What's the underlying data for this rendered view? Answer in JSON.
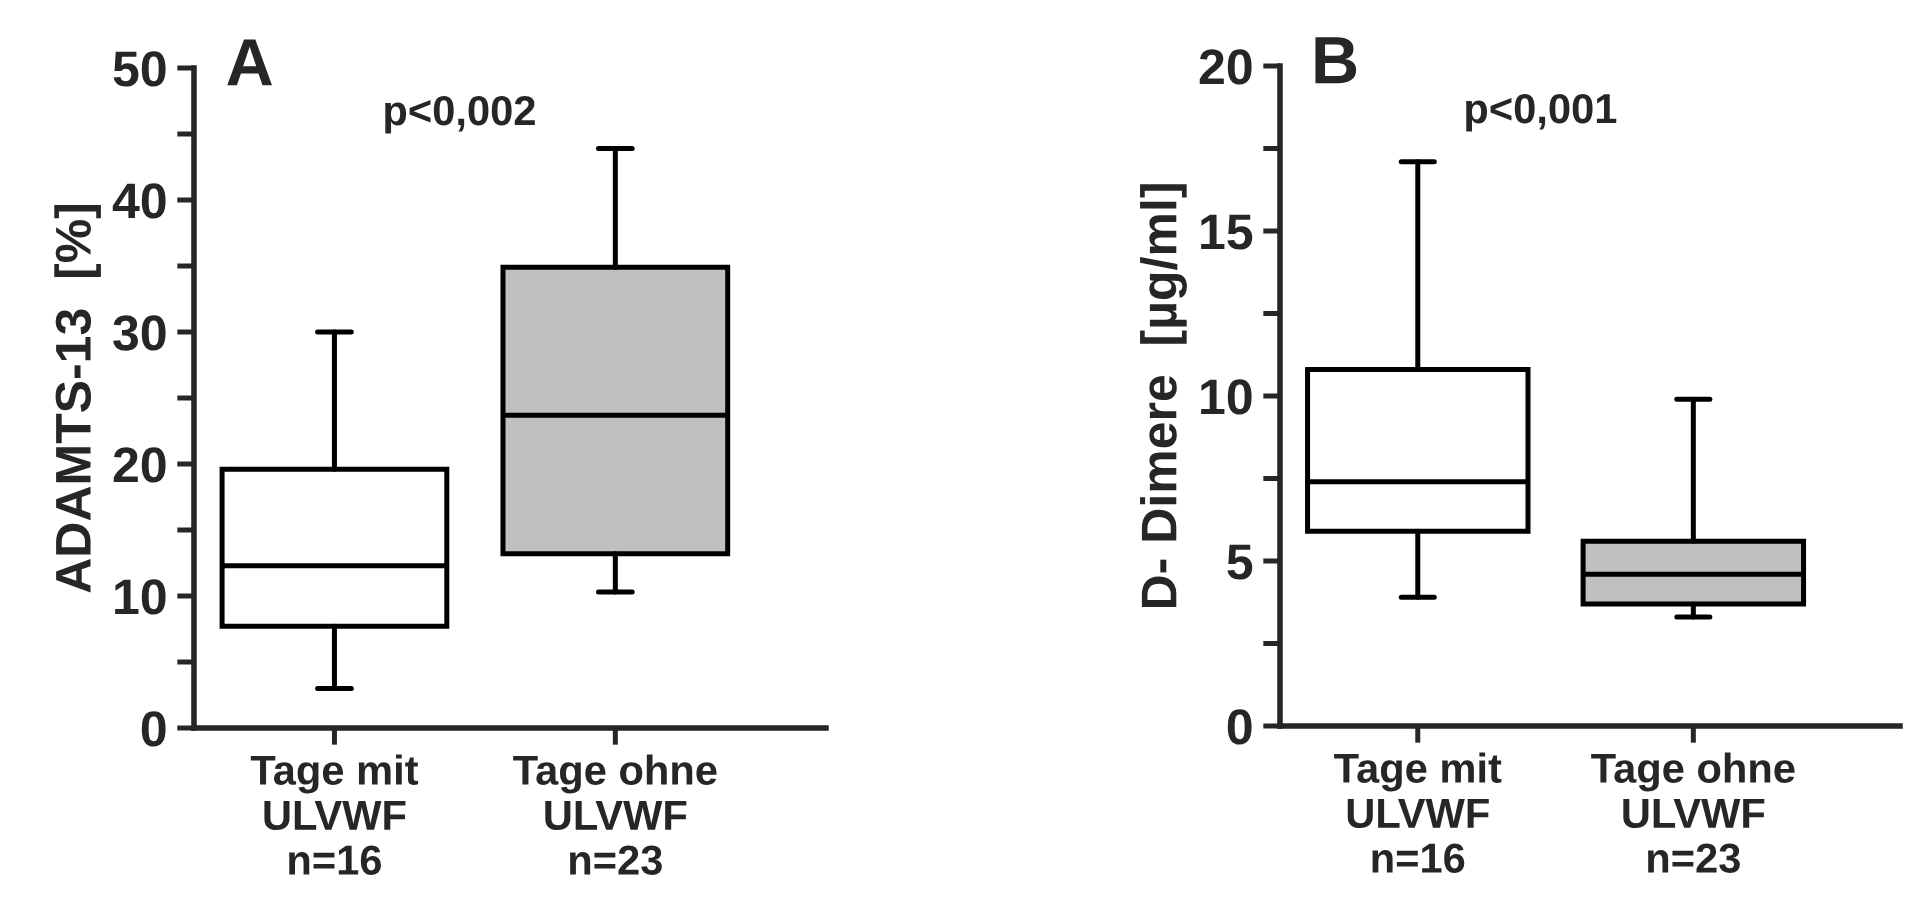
{
  "chart_data": [
    {
      "type": "box",
      "title": "A",
      "ylabel": "ADAMTS-13  [%]",
      "categories": [
        "Tage mit\nULVWF\nn=16",
        "Tage ohne\nULVWF\nn=23"
      ],
      "colors": [
        "#ffffff",
        "#c0c0c0"
      ],
      "boxes": [
        {
          "low": 3.0,
          "q1": 7.7,
          "median": 12.3,
          "q3": 19.6,
          "high": 30.0
        },
        {
          "low": 10.3,
          "q1": 13.2,
          "median": 23.7,
          "q3": 34.9,
          "high": 43.9
        }
      ],
      "ylim": [
        0,
        50
      ],
      "yticks": [
        0,
        {
          "value": 5,
          "label": null
        },
        10,
        {
          "value": 15,
          "label": null
        },
        20,
        {
          "value": 25,
          "label": null
        },
        30,
        {
          "value": 35,
          "label": null
        },
        40,
        {
          "value": 45,
          "label": null
        },
        50
      ],
      "annotations": [
        "p<0,002"
      ]
    },
    {
      "type": "box",
      "title": "B",
      "ylabel": "D- Dimere  [µg/ml]",
      "categories": [
        "Tage mit\nULVWF\nn=16",
        "Tage ohne\nULVWF\nn=23"
      ],
      "colors": [
        "#ffffff",
        "#c0c0c0"
      ],
      "boxes": [
        {
          "low": 3.9,
          "q1": 5.9,
          "median": 7.4,
          "q3": 10.8,
          "high": 17.1
        },
        {
          "low": 3.3,
          "q1": 3.7,
          "median": 4.6,
          "q3": 5.6,
          "high": 9.9
        }
      ],
      "ylim": [
        0,
        20
      ],
      "yticks": [
        0,
        {
          "value": 2.5,
          "label": null
        },
        5,
        {
          "value": 7.5,
          "label": null
        },
        10,
        {
          "value": 12.5,
          "label": null
        },
        15,
        {
          "value": 17.5,
          "label": null
        },
        20
      ],
      "annotations": [
        "p<0,001"
      ]
    }
  ]
}
